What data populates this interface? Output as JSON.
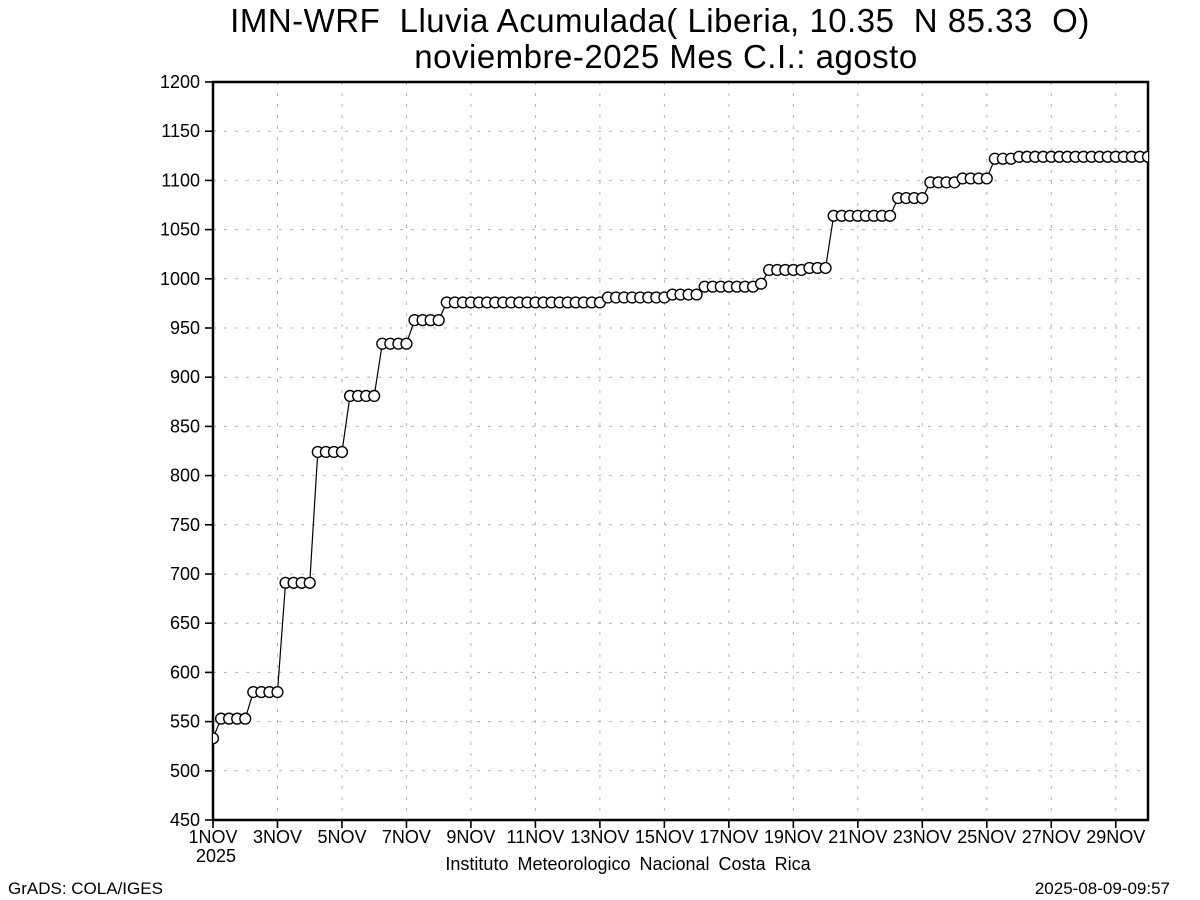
{
  "chart_data": {
    "type": "line",
    "title": "IMN-WRF  Lluvia Acumulada( Liberia, 10.35  N 85.33  O)",
    "subtitle": "noviembre-2025 Mes C.I.: agosto",
    "xlabel": "Instituto Meteorologico Nacional Costa Rica",
    "ylabel": "",
    "ylim": [
      450,
      1200
    ],
    "y_tick_step": 50,
    "y_ticks": [
      450,
      500,
      550,
      600,
      650,
      700,
      750,
      800,
      850,
      900,
      950,
      1000,
      1050,
      1100,
      1150,
      1200
    ],
    "x_domain_days": [
      0,
      29
    ],
    "x_ticks": [
      {
        "day": 0,
        "label": "1NOV",
        "sublabel": "2025"
      },
      {
        "day": 2,
        "label": "3NOV"
      },
      {
        "day": 4,
        "label": "5NOV"
      },
      {
        "day": 6,
        "label": "7NOV"
      },
      {
        "day": 8,
        "label": "9NOV"
      },
      {
        "day": 10,
        "label": "11NOV"
      },
      {
        "day": 12,
        "label": "13NOV"
      },
      {
        "day": 14,
        "label": "15NOV"
      },
      {
        "day": 16,
        "label": "17NOV"
      },
      {
        "day": 18,
        "label": "19NOV"
      },
      {
        "day": 20,
        "label": "21NOV"
      },
      {
        "day": 22,
        "label": "23NOV"
      },
      {
        "day": 24,
        "label": "25NOV"
      },
      {
        "day": 26,
        "label": "27NOV"
      },
      {
        "day": 28,
        "label": "29NOV"
      }
    ],
    "grid": true,
    "legend": "none",
    "marker": "open-circle",
    "series": [
      {
        "name": "lluvia-acumulada-mm",
        "start_day": 0,
        "step_days": 0.25,
        "values": [
          533,
          553,
          553,
          553,
          553,
          580,
          580,
          580,
          580,
          691,
          691,
          691,
          691,
          824,
          824,
          824,
          824,
          881,
          881,
          881,
          881,
          934,
          934,
          934,
          934,
          958,
          958,
          958,
          958,
          976,
          976,
          976,
          976,
          976,
          976,
          976,
          976,
          976,
          976,
          976,
          976,
          976,
          976,
          976,
          976,
          976,
          976,
          976,
          976,
          981,
          981,
          981,
          981,
          981,
          981,
          981,
          981,
          984,
          984,
          984,
          984,
          992,
          992,
          992,
          992,
          992,
          992,
          992,
          995,
          1009,
          1009,
          1009,
          1009,
          1009,
          1011,
          1011,
          1011,
          1064,
          1064,
          1064,
          1064,
          1064,
          1064,
          1064,
          1064,
          1082,
          1082,
          1082,
          1082,
          1098,
          1098,
          1098,
          1098,
          1102,
          1102,
          1102,
          1102,
          1122,
          1122,
          1122,
          1124,
          1124,
          1124,
          1124,
          1124,
          1124,
          1124,
          1124,
          1124,
          1124,
          1124,
          1124,
          1124,
          1124,
          1124,
          1124,
          1124
        ]
      }
    ]
  },
  "footer": {
    "left": "GrADS: COLA/IGES",
    "right": "2025-08-09-09:57"
  },
  "colors": {
    "background": "#ffffff",
    "frame": "#000000",
    "grid": "#b4b4b4",
    "line": "#000000",
    "marker_fill": "#ffffff",
    "text": "#000000"
  }
}
